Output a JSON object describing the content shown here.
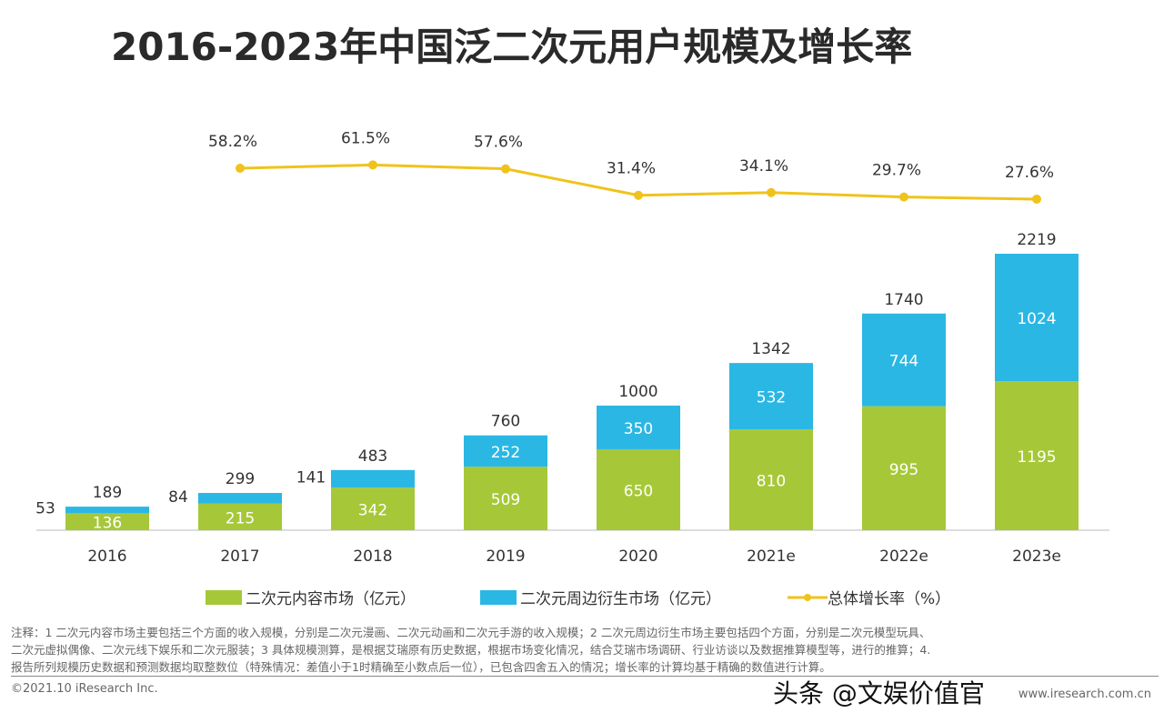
{
  "chart_data": {
    "type": "bar",
    "title": "2016-2023年中国泛二次元用户规模及增长率",
    "categories": [
      "2016",
      "2017",
      "2018",
      "2019",
      "2020",
      "2021e",
      "2022e",
      "2023e"
    ],
    "stacked": true,
    "series": [
      {
        "name": "二次元内容市场（亿元）",
        "type": "bar",
        "color": "#a6c838",
        "values": [
          136,
          215,
          342,
          509,
          650,
          810,
          995,
          1195
        ]
      },
      {
        "name": "二次元周边衍生市场（亿元）",
        "type": "bar",
        "color": "#2bb7e4",
        "values": [
          53,
          84,
          141,
          252,
          350,
          532,
          744,
          1024
        ]
      },
      {
        "name": "总体增长率（%）",
        "type": "line",
        "color": "#f0c31c",
        "values": [
          null,
          58.2,
          61.5,
          57.6,
          31.4,
          34.1,
          29.7,
          27.6
        ]
      }
    ],
    "totals": [
      189,
      299,
      483,
      760,
      1000,
      1342,
      1740,
      2219
    ],
    "growth_labels": [
      "",
      "58.2%",
      "61.5%",
      "57.6%",
      "31.4%",
      "34.1%",
      "29.7%",
      "27.6%"
    ],
    "legend_position": "bottom",
    "grid": false
  },
  "notes": [
    "注释：1 二次元内容市场主要包括三个方面的收入规模，分别是二次元漫画、二次元动画和二次元手游的收入规模；2 二次元周边衍生市场主要包括四个方面，分别是二次元模型玩具、",
    "二次元虚拟偶像、二次元线下娱乐和二次元服装；3 具体规模测算，是根据艾瑞原有历史数据，根据市场变化情况，结合艾瑞市场调研、行业访谈以及数据推算模型等，进行的推算；4.",
    "报告所列规模历史数据和预测数据均取整数位（特殊情况：差值小于1时精确至小数点后一位），已包含四舍五入的情况；增长率的计算均基于精确的数值进行计算。"
  ],
  "copyright": "©2021.10 iResearch Inc.",
  "site": "www.iresearch.com.cn",
  "watermark": "头条 @文娱价值官"
}
